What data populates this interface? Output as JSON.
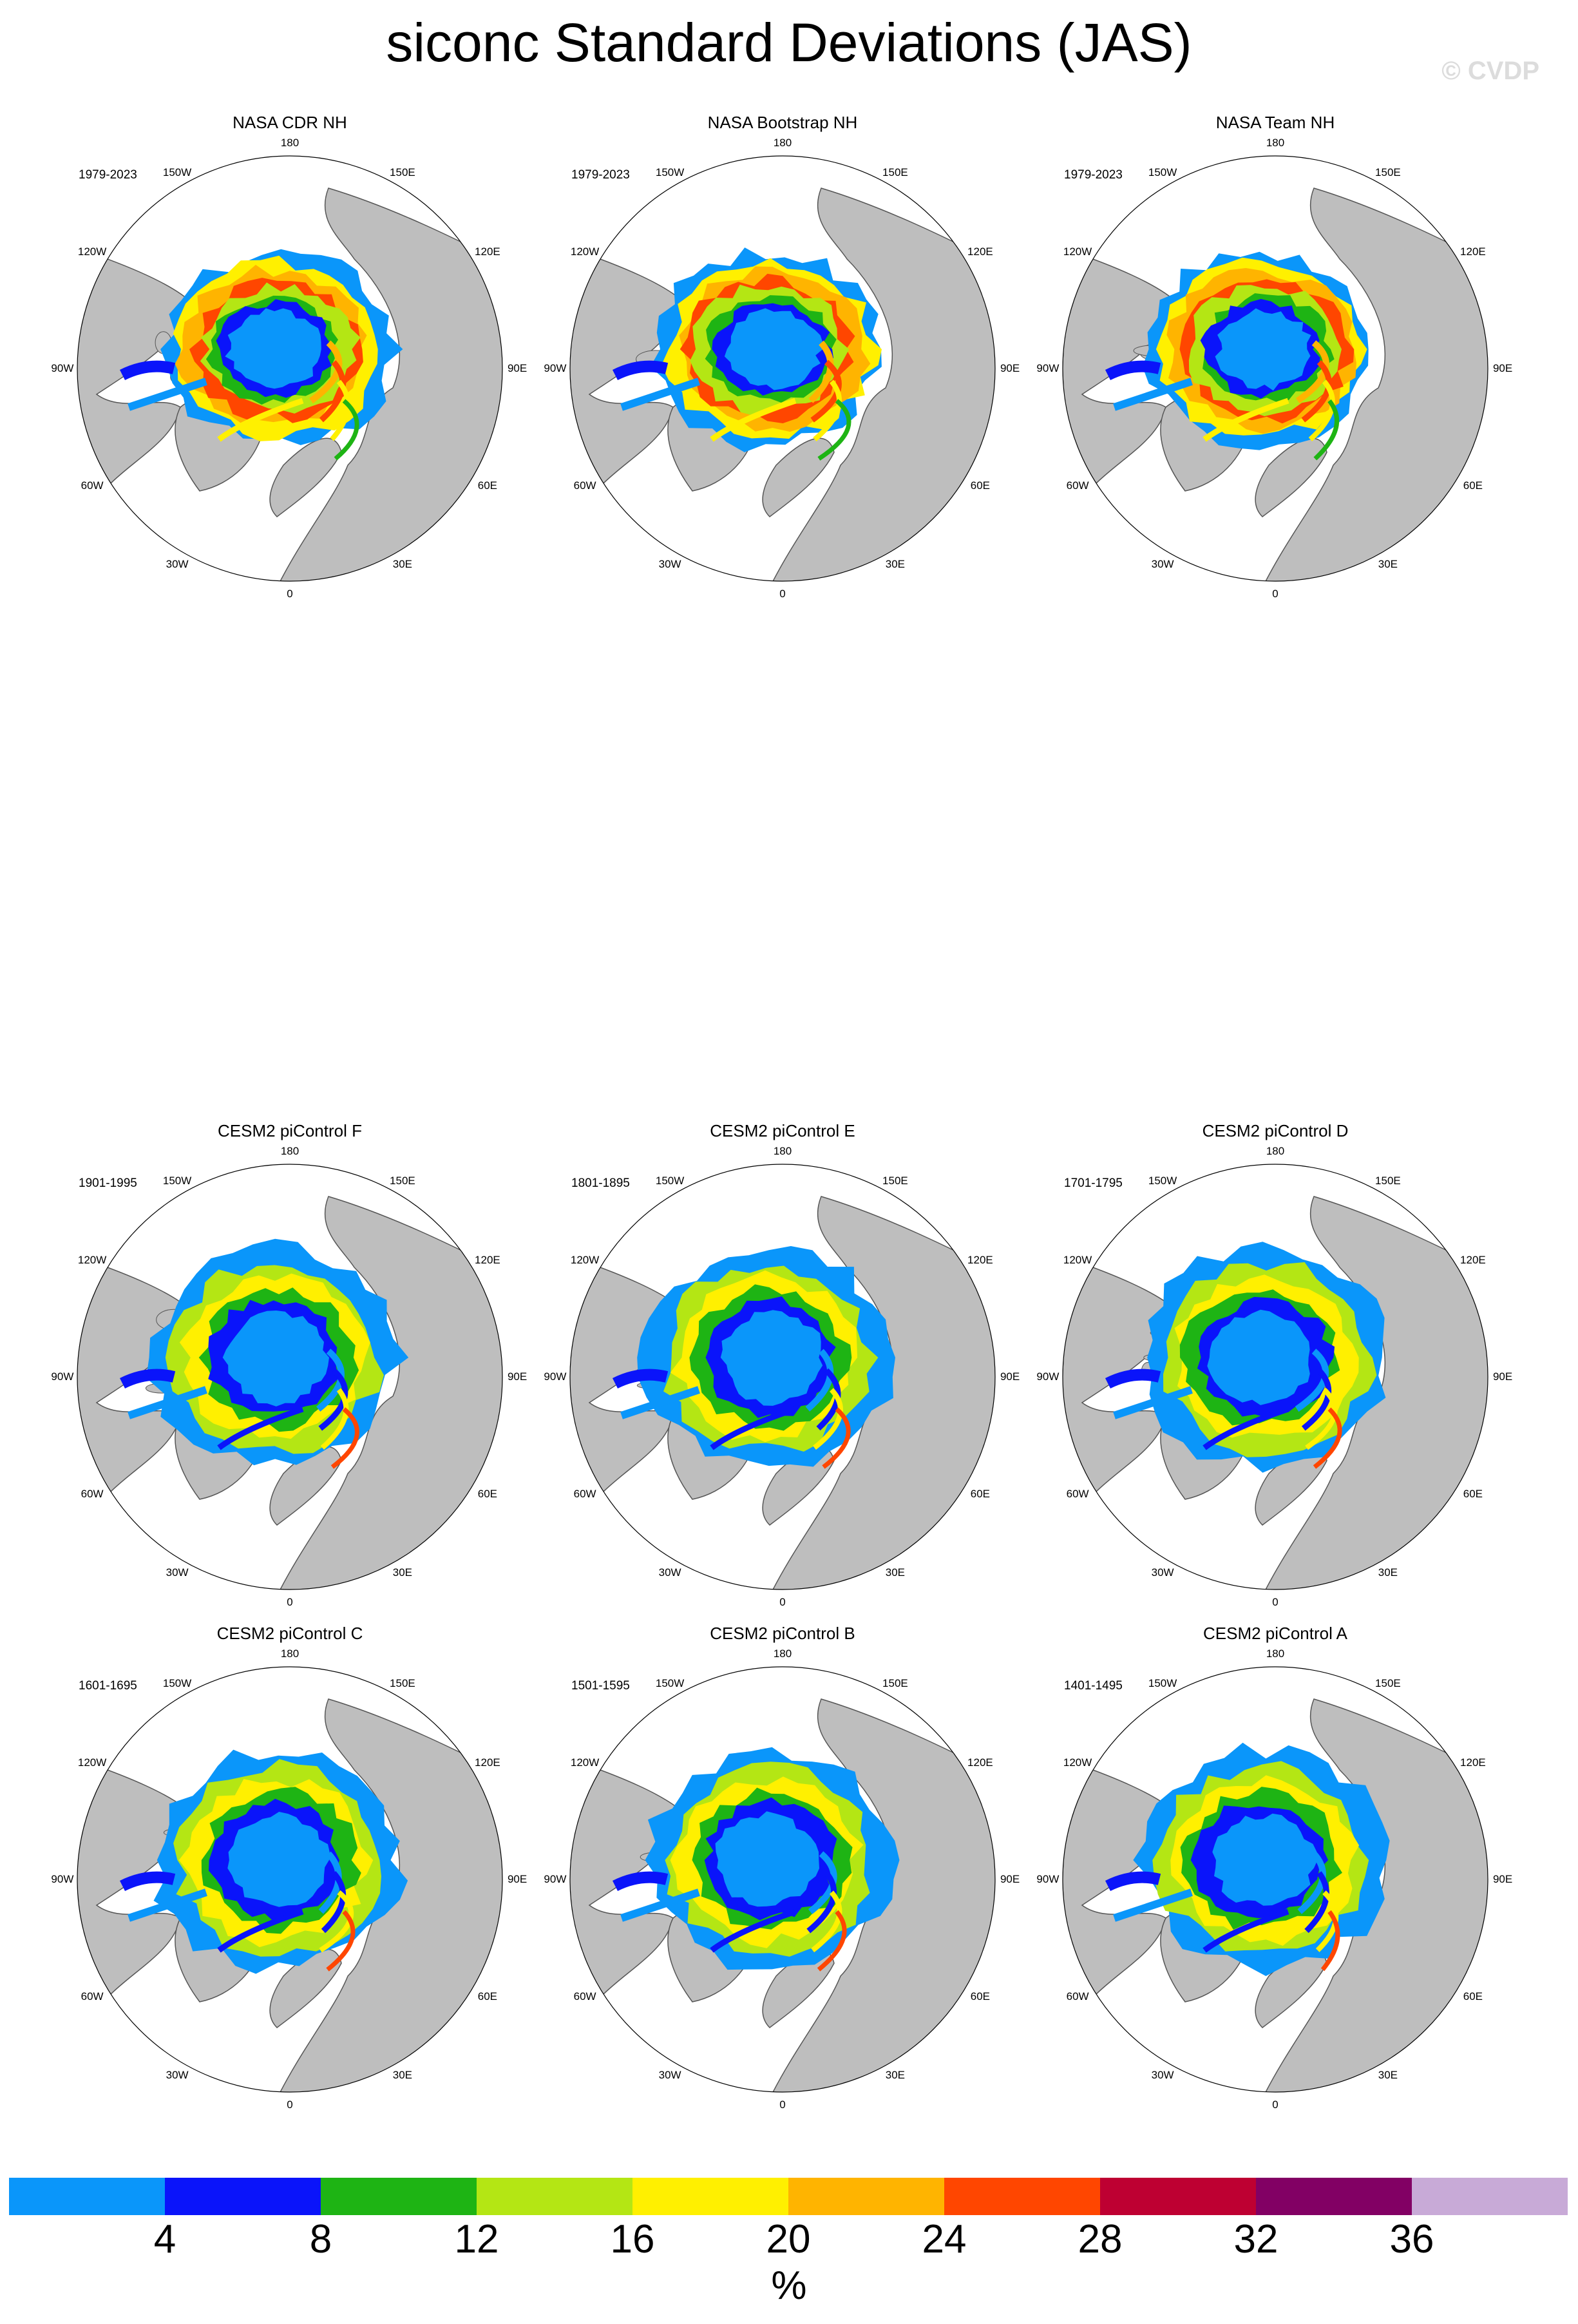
{
  "title": "siconc Standard Deviations (JAS)",
  "copyright": "© CVDP",
  "lon_labels": {
    "l180": "180",
    "l150w": "150W",
    "l150e": "150E",
    "l120w": "120W",
    "l120e": "120E",
    "l90w": "90W",
    "l90e": "90E",
    "l60w": "60W",
    "l60e": "60E",
    "l30w": "30W",
    "l30e": "30E",
    "l0": "0"
  },
  "panels": [
    {
      "title": "NASA CDR NH",
      "period": "1979-2023",
      "kind": "obs",
      "variant": 0
    },
    {
      "title": "NASA Bootstrap NH",
      "period": "1979-2023",
      "kind": "obs",
      "variant": 1
    },
    {
      "title": "NASA Team NH",
      "period": "1979-2023",
      "kind": "obs",
      "variant": 2
    },
    {
      "title": "CESM2 piControl F",
      "period": "1901-1995",
      "kind": "model",
      "variant": 3
    },
    {
      "title": "CESM2 piControl E",
      "period": "1801-1895",
      "kind": "model",
      "variant": 4
    },
    {
      "title": "CESM2 piControl D",
      "period": "1701-1795",
      "kind": "model",
      "variant": 5
    },
    {
      "title": "CESM2 piControl C",
      "period": "1601-1695",
      "kind": "model",
      "variant": 6
    },
    {
      "title": "CESM2 piControl B",
      "period": "1501-1595",
      "kind": "model",
      "variant": 7
    },
    {
      "title": "CESM2 piControl A",
      "period": "1401-1495",
      "kind": "model",
      "variant": 8
    }
  ],
  "colorbar": {
    "colors": [
      "#0a96fa",
      "#0a14fa",
      "#1eb414",
      "#b4e614",
      "#fff000",
      "#ffb400",
      "#ff4600",
      "#be0032",
      "#820064",
      "#c8aad7"
    ],
    "ticks": [
      "4",
      "8",
      "12",
      "16",
      "20",
      "24",
      "28",
      "32",
      "36"
    ],
    "unit": "%"
  },
  "map_colors": {
    "land": "#bebebe",
    "ocean": "#ffffff",
    "outline": "#000000"
  }
}
